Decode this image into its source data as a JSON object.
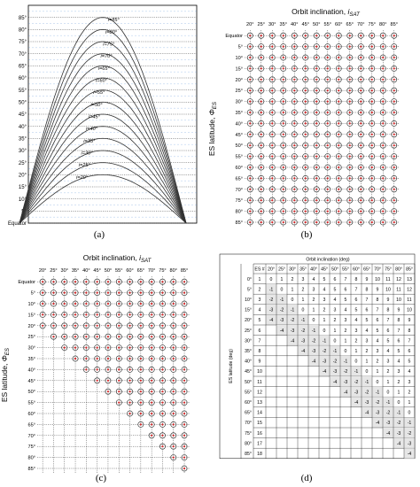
{
  "panel_labels": [
    "(a)",
    "(b)",
    "(c)",
    "(d)"
  ],
  "chart_data": [
    {
      "type": "line",
      "panel": "(a)",
      "ytick_labels": [
        "Equator",
        "5°",
        "10°",
        "15°",
        "20°",
        "25°",
        "30°",
        "35°",
        "40°",
        "45°",
        "50°",
        "55°",
        "60°",
        "65°",
        "70°",
        "75°",
        "80°",
        "85°"
      ],
      "series": [
        {
          "name": "i=20°",
          "peak": 20
        },
        {
          "name": "i=25°",
          "peak": 25
        },
        {
          "name": "i=30°",
          "peak": 30
        },
        {
          "name": "i=35°",
          "peak": 35
        },
        {
          "name": "i=40°",
          "peak": 40
        },
        {
          "name": "i=45°",
          "peak": 45
        },
        {
          "name": "i=50°",
          "peak": 50
        },
        {
          "name": "i=55°",
          "peak": 55
        },
        {
          "name": "i=60°",
          "peak": 60
        },
        {
          "name": "i=65°",
          "peak": 65
        },
        {
          "name": "i=70°",
          "peak": 70
        },
        {
          "name": "i=75°",
          "peak": 75
        },
        {
          "name": "i=80°",
          "peak": 80
        },
        {
          "name": "i=85°",
          "peak": 85
        }
      ],
      "ylim": [
        0,
        90
      ],
      "grid": true
    },
    {
      "type": "scatter",
      "panel": "(b)",
      "title": "Orbit inclination, i_SAT",
      "ylabel": "ES latitude, Φ_ES",
      "x_categories": [
        "20°",
        "25°",
        "30°",
        "35°",
        "40°",
        "45°",
        "50°",
        "55°",
        "60°",
        "65°",
        "70°",
        "75°",
        "80°",
        "85°"
      ],
      "y_categories": [
        "Equator",
        "5°",
        "10°",
        "15°",
        "20°",
        "25°",
        "30°",
        "35°",
        "40°",
        "45°",
        "50°",
        "55°",
        "60°",
        "65°",
        "70°",
        "75°",
        "80°",
        "85°"
      ],
      "rule": "all"
    },
    {
      "type": "scatter",
      "panel": "(c)",
      "title": "Orbit inclination, i_SAT",
      "ylabel": "ES latitude, Φ_ES",
      "x_categories": [
        "20°",
        "25°",
        "30°",
        "35°",
        "40°",
        "45°",
        "50°",
        "55°",
        "60°",
        "65°",
        "70°",
        "75°",
        "80°",
        "85°"
      ],
      "y_categories": [
        "Equator",
        "5°",
        "10°",
        "15°",
        "20°",
        "25°",
        "30°",
        "35°",
        "40°",
        "45°",
        "50°",
        "55°",
        "60°",
        "65°",
        "70°",
        "75°",
        "80°",
        "85°"
      ],
      "rule": "latitude <= inclination"
    },
    {
      "type": "table",
      "panel": "(d)",
      "title": "Orbit inclination (deg)",
      "row_axis_label": "ES latitude (deg)",
      "corner_label": "ES #",
      "columns": [
        "20°",
        "25°",
        "30°",
        "35°",
        "40°",
        "45°",
        "50°",
        "55°",
        "60°",
        "65°",
        "70°",
        "75°",
        "80°",
        "85°"
      ],
      "rows": [
        {
          "lat": "0°",
          "es": "1",
          "cells": [
            "0",
            "1",
            "2",
            "3",
            "4",
            "5",
            "6",
            "7",
            "8",
            "9",
            "10",
            "11",
            "12",
            "13"
          ]
        },
        {
          "lat": "5°",
          "es": "2",
          "cells": [
            "-1",
            "0",
            "1",
            "2",
            "3",
            "4",
            "5",
            "6",
            "7",
            "8",
            "9",
            "10",
            "11",
            "12"
          ]
        },
        {
          "lat": "10°",
          "es": "3",
          "cells": [
            "-2",
            "-1",
            "0",
            "1",
            "2",
            "3",
            "4",
            "5",
            "6",
            "7",
            "8",
            "9",
            "10",
            "11"
          ]
        },
        {
          "lat": "15°",
          "es": "4",
          "cells": [
            "-3",
            "-2",
            "-1",
            "0",
            "1",
            "2",
            "3",
            "4",
            "5",
            "6",
            "7",
            "8",
            "9",
            "10"
          ]
        },
        {
          "lat": "20°",
          "es": "5",
          "cells": [
            "-4",
            "-3",
            "-2",
            "-1",
            "0",
            "1",
            "2",
            "3",
            "4",
            "5",
            "6",
            "7",
            "8",
            "9"
          ]
        },
        {
          "lat": "25°",
          "es": "6",
          "cells": [
            "",
            "-4",
            "-3",
            "-2",
            "-1",
            "0",
            "1",
            "2",
            "3",
            "4",
            "5",
            "6",
            "7",
            "8"
          ]
        },
        {
          "lat": "30°",
          "es": "7",
          "cells": [
            "",
            "",
            "-4",
            "-3",
            "-2",
            "-1",
            "0",
            "1",
            "2",
            "3",
            "4",
            "5",
            "6",
            "7"
          ]
        },
        {
          "lat": "35°",
          "es": "8",
          "cells": [
            "",
            "",
            "",
            "-4",
            "-3",
            "-2",
            "-1",
            "0",
            "1",
            "2",
            "3",
            "4",
            "5",
            "6"
          ]
        },
        {
          "lat": "40°",
          "es": "9",
          "cells": [
            "",
            "",
            "",
            "",
            "-4",
            "-3",
            "-2",
            "-1",
            "0",
            "1",
            "2",
            "3",
            "4",
            "5"
          ]
        },
        {
          "lat": "45°",
          "es": "10",
          "cells": [
            "",
            "",
            "",
            "",
            "",
            "-4",
            "-3",
            "-2",
            "-1",
            "0",
            "1",
            "2",
            "3",
            "4"
          ]
        },
        {
          "lat": "50°",
          "es": "11",
          "cells": [
            "",
            "",
            "",
            "",
            "",
            "",
            "-4",
            "-3",
            "-2",
            "-1",
            "0",
            "1",
            "2",
            "3"
          ]
        },
        {
          "lat": "55°",
          "es": "12",
          "cells": [
            "",
            "",
            "",
            "",
            "",
            "",
            "",
            "-4",
            "-3",
            "-2",
            "-1",
            "0",
            "1",
            "2"
          ]
        },
        {
          "lat": "60°",
          "es": "13",
          "cells": [
            "",
            "",
            "",
            "",
            "",
            "",
            "",
            "",
            "-4",
            "-3",
            "-2",
            "-1",
            "0",
            "1"
          ]
        },
        {
          "lat": "65°",
          "es": "14",
          "cells": [
            "",
            "",
            "",
            "",
            "",
            "",
            "",
            "",
            "",
            "-4",
            "-3",
            "-2",
            "-1",
            "0"
          ]
        },
        {
          "lat": "70°",
          "es": "15",
          "cells": [
            "",
            "",
            "",
            "",
            "",
            "",
            "",
            "",
            "",
            "",
            "-4",
            "-3",
            "-2",
            "-1"
          ]
        },
        {
          "lat": "75°",
          "es": "16",
          "cells": [
            "",
            "",
            "",
            "",
            "",
            "",
            "",
            "",
            "",
            "",
            "",
            "-4",
            "-3",
            "-2"
          ]
        },
        {
          "lat": "80°",
          "es": "17",
          "cells": [
            "",
            "",
            "",
            "",
            "",
            "",
            "",
            "",
            "",
            "",
            "",
            "",
            "-4",
            "-3"
          ]
        },
        {
          "lat": "85°",
          "es": "18",
          "cells": [
            "",
            "",
            "",
            "",
            "",
            "",
            "",
            "",
            "",
            "",
            "",
            "",
            "",
            "-4"
          ]
        }
      ]
    }
  ],
  "colors": {
    "curve": "#333333",
    "grid_blue": "#3a7fd0",
    "marker_red": "#d62728",
    "marker_edge": "#222222",
    "shade": "#e6e6e6",
    "pink": "#f4c6cc"
  }
}
